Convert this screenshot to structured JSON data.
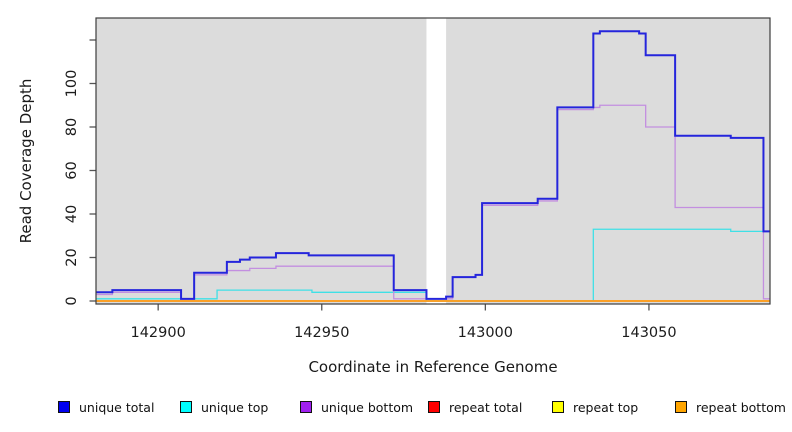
{
  "chart_data": {
    "type": "line",
    "subtype": "step-after",
    "title": "",
    "xlabel": "Coordinate in Reference Genome",
    "ylabel": "Read Coverage Depth",
    "xlim": [
      142881,
      143087
    ],
    "ylim": [
      0,
      130
    ],
    "x_ticks": [
      142900,
      142950,
      143000,
      143050
    ],
    "x_tick_labels": [
      "142900",
      "142950",
      "143000",
      "143050"
    ],
    "y_ticks": [
      0,
      20,
      40,
      60,
      80,
      100,
      120
    ],
    "y_tick_labels": [
      "0",
      "20",
      "40",
      "60",
      "80",
      "100",
      ""
    ],
    "grid": "off",
    "plot_background": "#DCDCDC",
    "gap_region": {
      "x_start": 142982,
      "x_end": 142988,
      "color": "#FFFFFF"
    },
    "legend_position": "bottom",
    "legend": [
      {
        "label": "unique total",
        "color": "#0000EE"
      },
      {
        "label": "unique top",
        "color": "#00FFFF"
      },
      {
        "label": "unique bottom",
        "color": "#A020F0"
      },
      {
        "label": "repeat total",
        "color": "#FF0000"
      },
      {
        "label": "repeat top",
        "color": "#FFFF00"
      },
      {
        "label": "repeat bottom",
        "color": "#FFA500"
      }
    ],
    "series": [
      {
        "name": "unique total",
        "color": "#2525DC",
        "width": 2,
        "points": [
          [
            142881,
            4
          ],
          [
            142886,
            5
          ],
          [
            142907,
            1
          ],
          [
            142911,
            13
          ],
          [
            142921,
            18
          ],
          [
            142925,
            19
          ],
          [
            142928,
            20
          ],
          [
            142936,
            22
          ],
          [
            142946,
            21
          ],
          [
            142972,
            5
          ],
          [
            142982,
            1
          ],
          [
            142988,
            2
          ],
          [
            142990,
            11
          ],
          [
            142997,
            12
          ],
          [
            142999,
            45
          ],
          [
            143016,
            47
          ],
          [
            143022,
            89
          ],
          [
            143033,
            123
          ],
          [
            143035,
            124
          ],
          [
            143047,
            123
          ],
          [
            143049,
            113
          ],
          [
            143058,
            76
          ],
          [
            143075,
            75
          ],
          [
            143085,
            32
          ],
          [
            143087,
            32
          ]
        ]
      },
      {
        "name": "unique top",
        "color": "#3FE0E6",
        "width": 1.3,
        "points": [
          [
            142881,
            1
          ],
          [
            142918,
            5
          ],
          [
            142947,
            4
          ],
          [
            142982,
            0
          ],
          [
            143033,
            33
          ],
          [
            143075,
            32
          ],
          [
            143087,
            32
          ]
        ]
      },
      {
        "name": "unique bottom",
        "color": "#C38FE0",
        "width": 1.3,
        "points": [
          [
            142881,
            3
          ],
          [
            142886,
            4
          ],
          [
            142907,
            1
          ],
          [
            142911,
            12
          ],
          [
            142921,
            14
          ],
          [
            142928,
            15
          ],
          [
            142936,
            16
          ],
          [
            142972,
            1
          ],
          [
            142990,
            11
          ],
          [
            142997,
            12
          ],
          [
            142999,
            44
          ],
          [
            143016,
            46
          ],
          [
            143022,
            88
          ],
          [
            143033,
            89
          ],
          [
            143035,
            90
          ],
          [
            143049,
            80
          ],
          [
            143058,
            43
          ],
          [
            143085,
            1
          ],
          [
            143087,
            1
          ]
        ]
      },
      {
        "name": "repeat total",
        "color": "#CC0000",
        "width": 1.2,
        "points": [
          [
            142881,
            0
          ],
          [
            143087,
            0
          ]
        ]
      },
      {
        "name": "repeat top",
        "color": "#EDED00",
        "width": 1.2,
        "points": [
          [
            142881,
            0
          ],
          [
            143087,
            0
          ]
        ]
      },
      {
        "name": "repeat bottom",
        "color": "#FF9C1B",
        "width": 1.8,
        "points": [
          [
            142881,
            0
          ],
          [
            143087,
            0
          ]
        ]
      }
    ]
  }
}
